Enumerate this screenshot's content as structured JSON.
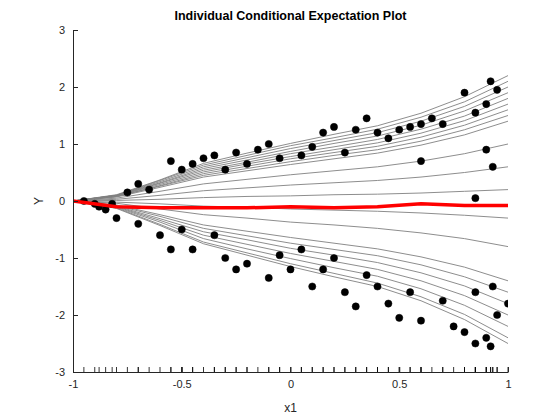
{
  "chart_data": {
    "type": "line",
    "title": "Individual Conditional Expectation Plot",
    "x_label": "x1",
    "y_label": "Y",
    "xlim": [
      -1,
      1
    ],
    "xticks": [
      -1,
      -0.5,
      0,
      0.5,
      1
    ],
    "ylim": [
      -3,
      3
    ],
    "yticks": [
      -3,
      -2,
      -1,
      0,
      1,
      2,
      3
    ],
    "grid": false,
    "x": [
      -1,
      -0.8,
      -0.6,
      -0.4,
      -0.2,
      0,
      0.2,
      0.4,
      0.6,
      0.8,
      1
    ],
    "series": [
      {
        "type": "line",
        "color": "#808080",
        "values": [
          0,
          0.11,
          0.37,
          0.66,
          0.84,
          1.01,
          1.17,
          1.32,
          1.54,
          1.83,
          2.2
        ]
      },
      {
        "type": "line",
        "color": "#808080",
        "values": [
          0,
          0.1,
          0.36,
          0.63,
          0.8,
          0.97,
          1.11,
          1.26,
          1.47,
          1.74,
          2.1
        ]
      },
      {
        "type": "line",
        "color": "#808080",
        "values": [
          0,
          0.1,
          0.34,
          0.6,
          0.76,
          0.92,
          1.06,
          1.2,
          1.4,
          1.66,
          2.0
        ]
      },
      {
        "type": "line",
        "color": "#808080",
        "values": [
          0,
          0.1,
          0.32,
          0.57,
          0.72,
          0.87,
          1.01,
          1.14,
          1.33,
          1.58,
          1.9
        ]
      },
      {
        "type": "line",
        "color": "#808080",
        "values": [
          0,
          0.09,
          0.31,
          0.54,
          0.68,
          0.83,
          0.95,
          1.08,
          1.26,
          1.49,
          1.8
        ]
      },
      {
        "type": "line",
        "color": "#808080",
        "values": [
          0,
          0.09,
          0.29,
          0.51,
          0.65,
          0.78,
          0.9,
          1.02,
          1.19,
          1.41,
          1.7
        ]
      },
      {
        "type": "line",
        "color": "#808080",
        "values": [
          0,
          0.08,
          0.27,
          0.48,
          0.61,
          0.74,
          0.85,
          0.96,
          1.12,
          1.33,
          1.6
        ]
      },
      {
        "type": "line",
        "color": "#808080",
        "values": [
          0,
          0.08,
          0.26,
          0.45,
          0.57,
          0.69,
          0.8,
          0.9,
          1.05,
          1.25,
          1.5
        ]
      },
      {
        "type": "line",
        "color": "#808080",
        "values": [
          0,
          0.07,
          0.24,
          0.42,
          0.53,
          0.64,
          0.74,
          0.84,
          0.98,
          1.16,
          1.4
        ]
      },
      {
        "type": "line",
        "color": "#808080",
        "values": [
          0,
          0.05,
          0.17,
          0.3,
          0.38,
          0.46,
          0.53,
          0.6,
          0.7,
          0.83,
          1.0
        ]
      },
      {
        "type": "line",
        "color": "#808080",
        "values": [
          0,
          0.03,
          0.1,
          0.18,
          0.23,
          0.28,
          0.32,
          0.36,
          0.42,
          0.5,
          0.6
        ]
      },
      {
        "type": "line",
        "color": "#808080",
        "values": [
          0,
          0.01,
          0.03,
          0.06,
          0.08,
          0.09,
          0.11,
          0.12,
          0.14,
          0.17,
          0.2
        ]
      },
      {
        "type": "line",
        "color": "#808080",
        "values": [
          0,
          -0.02,
          -0.05,
          -0.09,
          -0.11,
          -0.14,
          -0.16,
          -0.18,
          -0.21,
          -0.25,
          -0.3
        ]
      },
      {
        "type": "line",
        "color": "#808080",
        "values": [
          0,
          -0.04,
          -0.14,
          -0.24,
          -0.3,
          -0.37,
          -0.42,
          -0.48,
          -0.56,
          -0.66,
          -0.8
        ]
      },
      {
        "type": "line",
        "color": "#808080",
        "values": [
          0,
          -0.07,
          -0.24,
          -0.42,
          -0.53,
          -0.64,
          -0.74,
          -0.84,
          -0.98,
          -1.16,
          -1.4
        ]
      },
      {
        "type": "line",
        "color": "#808080",
        "values": [
          0,
          -0.08,
          -0.27,
          -0.48,
          -0.61,
          -0.74,
          -0.85,
          -0.96,
          -1.12,
          -1.33,
          -1.6
        ]
      },
      {
        "type": "line",
        "color": "#808080",
        "values": [
          0,
          -0.09,
          -0.31,
          -0.54,
          -0.68,
          -0.83,
          -0.95,
          -1.08,
          -1.26,
          -1.49,
          -1.8
        ]
      },
      {
        "type": "line",
        "color": "#808080",
        "values": [
          0,
          -0.1,
          -0.34,
          -0.6,
          -0.76,
          -0.92,
          -1.06,
          -1.2,
          -1.4,
          -1.66,
          -2.0
        ]
      },
      {
        "type": "line",
        "color": "#808080",
        "values": [
          0,
          -0.11,
          -0.37,
          -0.66,
          -0.84,
          -1.01,
          -1.17,
          -1.32,
          -1.54,
          -1.83,
          -2.2
        ]
      },
      {
        "type": "line",
        "color": "#808080",
        "values": [
          0,
          -0.12,
          -0.41,
          -0.72,
          -0.91,
          -1.1,
          -1.27,
          -1.44,
          -1.68,
          -1.99,
          -2.4
        ]
      },
      {
        "type": "line",
        "color": "#808080",
        "values": [
          0,
          -0.13,
          -0.43,
          -0.75,
          -0.95,
          -1.15,
          -1.33,
          -1.5,
          -1.75,
          -2.08,
          -2.5
        ]
      },
      {
        "type": "scatter",
        "color": "#000000",
        "marker": "circle",
        "x": [
          -0.95,
          -0.9,
          -0.75,
          -0.7,
          -0.65,
          -0.55,
          -0.5,
          -0.45,
          -0.4,
          -0.35,
          -0.3,
          -0.25,
          -0.2,
          -0.15,
          -0.1,
          -0.05,
          0.05,
          0.1,
          0.15,
          0.2,
          0.25,
          0.3,
          0.35,
          0.4,
          0.45,
          0.5,
          0.55,
          0.6,
          0.65,
          0.7,
          0.8,
          0.85,
          0.9,
          0.92,
          0.95,
          0.9,
          0.93,
          0.6,
          -0.85,
          -0.8,
          -0.7,
          -0.6,
          -0.55,
          -0.5,
          -0.45,
          -0.35,
          -0.3,
          -0.25,
          -0.2,
          -0.1,
          -0.05,
          0,
          0.05,
          0.1,
          0.15,
          0.2,
          0.25,
          0.3,
          0.35,
          0.4,
          0.45,
          0.5,
          0.55,
          0.6,
          0.7,
          0.75,
          0.8,
          0.85,
          0.9,
          0.92,
          0.95,
          1.0,
          0.93,
          0.85,
          -0.88,
          -0.82,
          0.85
        ],
        "values": [
          0,
          -0.05,
          0.15,
          0.3,
          0.2,
          0.7,
          0.55,
          0.65,
          0.75,
          0.8,
          0.55,
          0.85,
          0.65,
          0.9,
          1.0,
          0.75,
          0.8,
          0.95,
          1.2,
          1.3,
          0.85,
          1.25,
          1.45,
          1.2,
          1.1,
          1.25,
          1.3,
          1.35,
          1.45,
          1.35,
          1.9,
          1.55,
          1.7,
          2.1,
          1.95,
          0.9,
          0.6,
          0.7,
          -0.15,
          -0.3,
          -0.4,
          -0.6,
          -0.85,
          -0.5,
          -0.85,
          -0.6,
          -1.0,
          -1.2,
          -1.1,
          -1.35,
          -0.95,
          -1.2,
          -0.85,
          -1.5,
          -1.2,
          -1.0,
          -1.6,
          -1.85,
          -1.3,
          -1.5,
          -1.8,
          -2.05,
          -1.6,
          -2.1,
          -1.75,
          -2.2,
          -2.3,
          -1.6,
          -2.4,
          -2.55,
          -2.0,
          -1.8,
          -1.5,
          -2.5,
          -0.1,
          -0.05,
          0.05
        ]
      },
      {
        "type": "line",
        "color": "#ff0000",
        "values": [
          0,
          -0.1,
          -0.12,
          -0.12,
          -0.12,
          -0.1,
          -0.12,
          -0.1,
          -0.05,
          -0.08,
          -0.08
        ]
      }
    ]
  }
}
